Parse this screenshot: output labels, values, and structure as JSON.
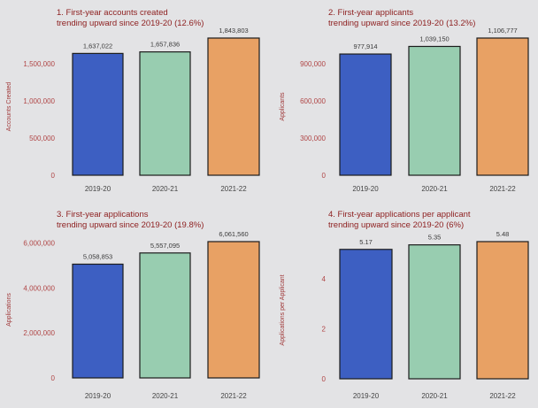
{
  "colors": {
    "background": "#e3e3e5",
    "title": "#8e2121",
    "axis_text": "#b04646",
    "bars": [
      "#3d5fc2",
      "#98cdb0",
      "#e8a164"
    ],
    "bar_outline": "#1c1c1c"
  },
  "chart_data": [
    {
      "type": "bar",
      "title_lines": [
        "1. First-year accounts created",
        "trending upward since 2019-20 (12.6%)"
      ],
      "xlabel": "",
      "ylabel": "Accounts Created",
      "categories": [
        "2019-20",
        "2020-21",
        "2021-22"
      ],
      "values": [
        1637022,
        1657836,
        1843803
      ],
      "value_labels": [
        "1,637,022",
        "1,657,836",
        "1,843,803"
      ],
      "yticks": [
        0,
        500000,
        1000000,
        1500000
      ],
      "ytick_labels": [
        "0",
        "500,000",
        "1,000,000",
        "1,500,000"
      ],
      "ylim": [
        0,
        1843803
      ]
    },
    {
      "type": "bar",
      "title_lines": [
        "2. First-year applicants",
        "trending upward since 2019-20 (13.2%)"
      ],
      "xlabel": "",
      "ylabel": "Applicants",
      "categories": [
        "2019-20",
        "2020-21",
        "2021-22"
      ],
      "values": [
        977914,
        1039150,
        1106777
      ],
      "value_labels": [
        "977,914",
        "1,039,150",
        "1,106,777"
      ],
      "yticks": [
        0,
        300000,
        600000,
        900000
      ],
      "ytick_labels": [
        "0",
        "300,000",
        "600,000",
        "900,000"
      ],
      "ylim": [
        0,
        1106777
      ]
    },
    {
      "type": "bar",
      "title_lines": [
        "3. First-year applications",
        "trending upward since 2019-20 (19.8%)"
      ],
      "xlabel": "",
      "ylabel": "Applications",
      "categories": [
        "2019-20",
        "2020-21",
        "2021-22"
      ],
      "values": [
        5058853,
        5557095,
        6061560
      ],
      "value_labels": [
        "5,058,853",
        "5,557,095",
        "6,061,560"
      ],
      "yticks": [
        0,
        2000000,
        4000000,
        6000000
      ],
      "ytick_labels": [
        "0",
        "2,000,000",
        "4,000,000",
        "6,000,000"
      ],
      "ylim": [
        0,
        6061560
      ]
    },
    {
      "type": "bar",
      "title_lines": [
        "4. First-year applications per applicant",
        "trending upward since 2019-20 (6%)"
      ],
      "xlabel": "",
      "ylabel": "Applications per Applicant",
      "categories": [
        "2019-20",
        "2020-21",
        "2021-22"
      ],
      "values": [
        5.17,
        5.35,
        5.48
      ],
      "value_labels": [
        "5.17",
        "5.35",
        "5.48"
      ],
      "yticks": [
        0,
        2,
        4
      ],
      "ytick_labels": [
        "0",
        "2",
        "4"
      ],
      "ylim": [
        0,
        5.48
      ]
    }
  ]
}
